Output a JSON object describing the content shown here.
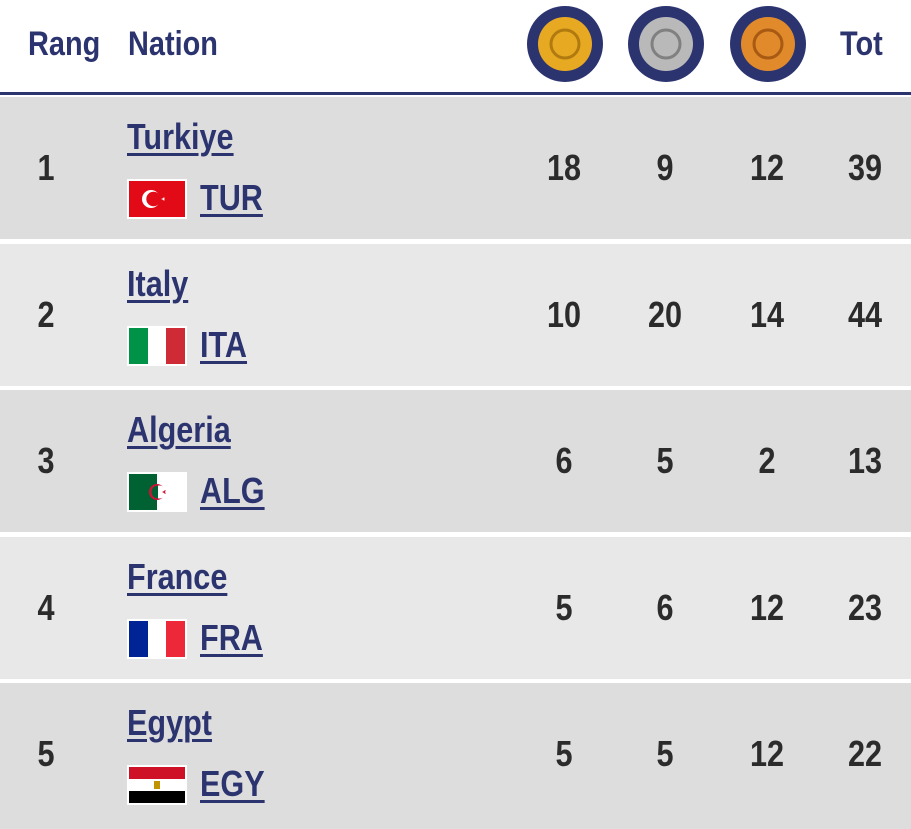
{
  "header": {
    "rank": "Rang",
    "nation": "Nation",
    "total": "Tot"
  },
  "table": {
    "rows": [
      {
        "rank": 1,
        "nation": "Turkiye",
        "code": "TUR",
        "gold": 18,
        "silver": 9,
        "bronze": 12,
        "total": 39
      },
      {
        "rank": 2,
        "nation": "Italy",
        "code": "ITA",
        "gold": 10,
        "silver": 20,
        "bronze": 14,
        "total": 44
      },
      {
        "rank": 3,
        "nation": "Algeria",
        "code": "ALG",
        "gold": 6,
        "silver": 5,
        "bronze": 2,
        "total": 13
      },
      {
        "rank": 4,
        "nation": "France",
        "code": "FRA",
        "gold": 5,
        "silver": 6,
        "bronze": 12,
        "total": 23
      },
      {
        "rank": 5,
        "nation": "Egypt",
        "code": "EGY",
        "gold": 5,
        "silver": 5,
        "bronze": 12,
        "total": 22
      }
    ]
  }
}
